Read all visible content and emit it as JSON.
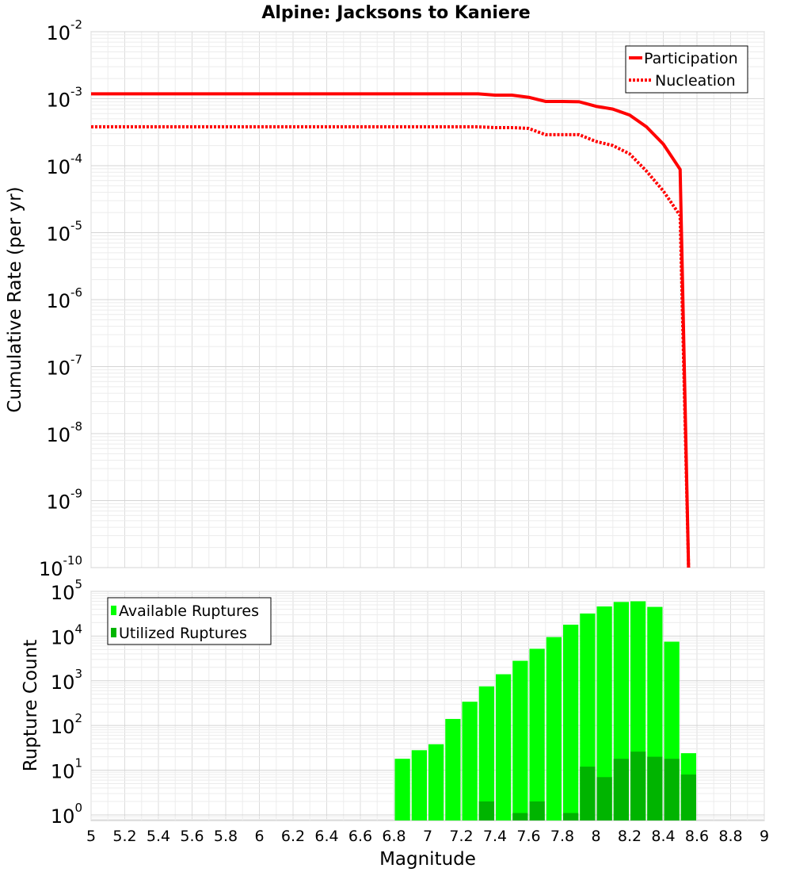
{
  "title": "Alpine: Jacksons to Kaniere",
  "chart_data": [
    {
      "type": "line",
      "ylabel": "Cumulative Rate (per yr)",
      "xlabel": "",
      "xlim": [
        5,
        9
      ],
      "yscale": "log",
      "ylim": [
        1e-10,
        0.01
      ],
      "y_tick_base": "10",
      "y_tick_exponents": [
        "-10",
        "-9",
        "-8",
        "-7",
        "-6",
        "-5",
        "-4",
        "-3",
        "-2"
      ],
      "grid": true,
      "legend_position": "top-right",
      "series": [
        {
          "name": "Participation",
          "style": "solid",
          "color": "#ff0000",
          "x": [
            5.0,
            5.1,
            5.2,
            5.3,
            5.4,
            5.5,
            5.6,
            5.7,
            5.8,
            5.9,
            6.0,
            6.1,
            6.2,
            6.3,
            6.4,
            6.5,
            6.6,
            6.7,
            6.8,
            6.9,
            7.0,
            7.1,
            7.2,
            7.3,
            7.4,
            7.5,
            7.6,
            7.7,
            7.8,
            7.9,
            8.0,
            8.1,
            8.2,
            8.3,
            8.4,
            8.5,
            8.55
          ],
          "y": [
            0.00118,
            0.00118,
            0.00118,
            0.00118,
            0.00118,
            0.00118,
            0.00118,
            0.00118,
            0.00118,
            0.00118,
            0.00118,
            0.00118,
            0.00118,
            0.00118,
            0.00118,
            0.00118,
            0.00118,
            0.00118,
            0.00118,
            0.00118,
            0.00118,
            0.00118,
            0.00118,
            0.00118,
            0.00113,
            0.00113,
            0.00105,
            0.00091,
            0.00091,
            0.0009,
            0.00077,
            0.0007,
            0.00057,
            0.00038,
            0.00021,
            8.8e-05,
            1e-10
          ]
        },
        {
          "name": "Nucleation",
          "style": "dotted",
          "color": "#ff0000",
          "x": [
            5.0,
            5.1,
            5.2,
            5.3,
            5.4,
            5.5,
            5.6,
            5.7,
            5.8,
            5.9,
            6.0,
            6.1,
            6.2,
            6.3,
            6.4,
            6.5,
            6.6,
            6.7,
            6.8,
            6.9,
            7.0,
            7.1,
            7.2,
            7.3,
            7.4,
            7.5,
            7.6,
            7.7,
            7.8,
            7.9,
            8.0,
            8.1,
            8.2,
            8.3,
            8.4,
            8.5,
            8.55
          ],
          "y": [
            0.00038,
            0.00038,
            0.00038,
            0.00038,
            0.00038,
            0.00038,
            0.00038,
            0.00038,
            0.00038,
            0.00038,
            0.00038,
            0.00038,
            0.00038,
            0.00038,
            0.00038,
            0.00038,
            0.00038,
            0.00038,
            0.00038,
            0.00038,
            0.00038,
            0.00038,
            0.00038,
            0.00038,
            0.00037,
            0.00037,
            0.00036,
            0.00029,
            0.00029,
            0.00029,
            0.00023,
            0.0002,
            0.00015,
            8.3e-05,
            4.2e-05,
            1.8e-05,
            1e-10
          ]
        }
      ]
    },
    {
      "type": "bar",
      "ylabel": "Rupture Count",
      "xlabel": "Magnitude",
      "xlim": [
        5,
        9
      ],
      "x_ticks": [
        "5",
        "5.2",
        "5.4",
        "5.6",
        "5.8",
        "6",
        "6.2",
        "6.4",
        "6.6",
        "6.8",
        "7",
        "7.2",
        "7.4",
        "7.6",
        "7.8",
        "8",
        "8.2",
        "8.4",
        "8.6",
        "8.8",
        "9"
      ],
      "yscale": "log",
      "ylim": [
        0.75,
        100000
      ],
      "y_tick_base": "10",
      "y_tick_exponents": [
        "0",
        "1",
        "2",
        "3",
        "4",
        "5"
      ],
      "grid": true,
      "legend_position": "top-left",
      "bin_width": 0.1,
      "series": [
        {
          "name": "Available Ruptures",
          "color": "#00ff00",
          "x": [
            6.85,
            6.95,
            7.05,
            7.15,
            7.25,
            7.35,
            7.45,
            7.55,
            7.65,
            7.75,
            7.85,
            7.95,
            8.05,
            8.15,
            8.25,
            8.35,
            8.45,
            8.55
          ],
          "values": [
            18,
            28,
            38,
            140,
            340,
            750,
            1400,
            2800,
            5200,
            9500,
            18000,
            32000,
            46000,
            58000,
            60000,
            45000,
            7500,
            24
          ]
        },
        {
          "name": "Utilized Ruptures",
          "color": "#00b400",
          "x": [
            7.35,
            7.55,
            7.65,
            7.85,
            7.95,
            8.05,
            8.15,
            8.25,
            8.35,
            8.45,
            8.55
          ],
          "values": [
            2,
            1.1,
            2,
            1.1,
            12,
            7,
            18,
            26,
            20,
            18,
            8
          ]
        }
      ]
    }
  ]
}
